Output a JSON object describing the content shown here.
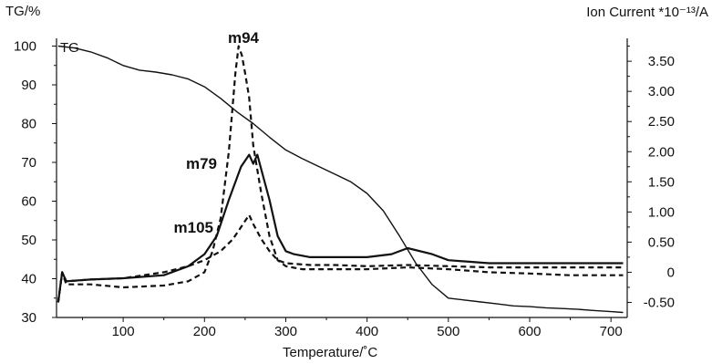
{
  "chart_data": {
    "type": "line",
    "title": "",
    "xlabel": "Temperature/˚C",
    "ylabel_left": "TG/%",
    "ylabel_right": "Ion Current *10⁻¹³/A",
    "xlim": [
      18,
      720
    ],
    "ylim_left": [
      30,
      102
    ],
    "ylim_right": [
      -0.75,
      3.88
    ],
    "x_ticks": [
      "100",
      "200",
      "300",
      "400",
      "500",
      "600",
      "700"
    ],
    "y_left_ticks": [
      "30",
      "40",
      "50",
      "60",
      "70",
      "80",
      "90",
      "100"
    ],
    "y_right_ticks": [
      "-0.50",
      "0",
      "0.50",
      "1.00",
      "1.50",
      "2.00",
      "2.50",
      "3.00",
      "3.50"
    ],
    "grid": false,
    "series": [
      {
        "name": "TG",
        "axis": "left",
        "style": "solid",
        "x": [
          20,
          40,
          60,
          80,
          100,
          120,
          140,
          160,
          180,
          200,
          220,
          240,
          260,
          280,
          300,
          320,
          340,
          360,
          380,
          400,
          420,
          440,
          460,
          480,
          500,
          520,
          540,
          560,
          580,
          600,
          620,
          640,
          660,
          680,
          700,
          715
        ],
        "y": [
          100,
          99.5,
          98.5,
          97,
          95,
          93.8,
          93.3,
          92.6,
          91.5,
          89.5,
          86.5,
          83,
          80,
          76.5,
          73.2,
          71,
          69,
          67,
          65,
          62,
          57.5,
          51,
          44,
          38.5,
          35,
          34.5,
          34,
          33.5,
          33,
          32.8,
          32.5,
          32.3,
          32.1,
          31.8,
          31.5,
          31.3
        ]
      },
      {
        "name": "m94",
        "axis": "right",
        "style": "dashed",
        "x": [
          20,
          25,
          30,
          60,
          100,
          150,
          180,
          200,
          210,
          220,
          230,
          238,
          242,
          246,
          250,
          255,
          260,
          270,
          280,
          290,
          300,
          320,
          350,
          400,
          450,
          500,
          550,
          600,
          650,
          700,
          715
        ],
        "y": [
          -0.5,
          0,
          -0.2,
          -0.2,
          -0.25,
          -0.22,
          -0.15,
          0,
          0.35,
          0.9,
          2.0,
          3.3,
          3.75,
          3.6,
          3.3,
          2.9,
          2.1,
          1.3,
          0.6,
          0.2,
          0.1,
          0.05,
          0.05,
          0.05,
          0.08,
          0.05,
          0.0,
          -0.02,
          -0.05,
          -0.05,
          -0.05
        ]
      },
      {
        "name": "m79",
        "axis": "right",
        "style": "solid",
        "x": [
          20,
          25,
          30,
          60,
          100,
          150,
          180,
          200,
          215,
          230,
          245,
          255,
          260,
          265,
          270,
          280,
          290,
          300,
          310,
          330,
          360,
          400,
          430,
          450,
          480,
          500,
          550,
          600,
          650,
          700,
          715
        ],
        "y": [
          -0.5,
          0,
          -0.15,
          -0.12,
          -0.1,
          -0.05,
          0.1,
          0.3,
          0.6,
          1.2,
          1.75,
          1.95,
          1.8,
          1.95,
          1.7,
          1.2,
          0.6,
          0.35,
          0.3,
          0.25,
          0.25,
          0.25,
          0.3,
          0.4,
          0.3,
          0.2,
          0.15,
          0.15,
          0.15,
          0.15,
          0.15
        ]
      },
      {
        "name": "m105",
        "axis": "right",
        "style": "dashed",
        "x": [
          20,
          25,
          30,
          60,
          100,
          150,
          180,
          200,
          220,
          235,
          245,
          255,
          260,
          270,
          280,
          290,
          300,
          330,
          360,
          400,
          450,
          500,
          550,
          600,
          650,
          700,
          715
        ],
        "y": [
          -0.5,
          0,
          -0.15,
          -0.12,
          -0.1,
          0,
          0.1,
          0.2,
          0.35,
          0.55,
          0.75,
          0.95,
          0.8,
          0.55,
          0.35,
          0.2,
          0.15,
          0.12,
          0.12,
          0.1,
          0.12,
          0.1,
          0.08,
          0.08,
          0.08,
          0.08,
          0.08
        ]
      }
    ]
  }
}
